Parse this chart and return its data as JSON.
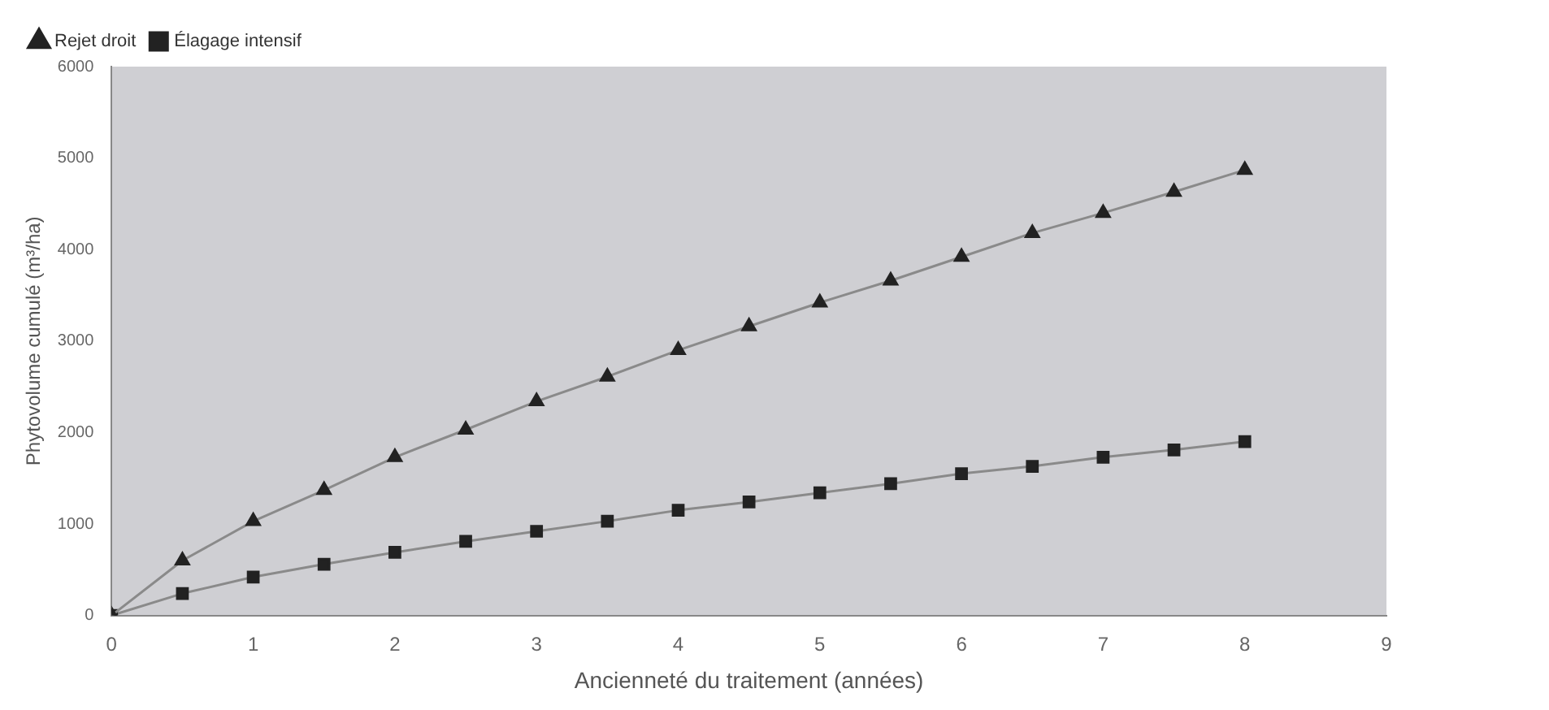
{
  "chart_data": {
    "type": "line",
    "xlabel": "Ancienneté du traitement (années)",
    "ylabel": "Phytovolume cumulé (m³/ha)",
    "x": [
      0,
      0.5,
      1,
      1.5,
      2,
      2.5,
      3,
      3.5,
      4,
      4.5,
      5,
      5.5,
      6,
      6.5,
      7,
      7.5,
      8
    ],
    "series": [
      {
        "name": "Rejet droit",
        "color": "#222222",
        "marker": "triangle",
        "values": [
          0,
          600,
          1030,
          1370,
          1730,
          2030,
          2340,
          2610,
          2900,
          3160,
          3420,
          3660,
          3920,
          4180,
          4400,
          4630,
          4870
        ]
      },
      {
        "name": "Élagage intensif",
        "color": "#222222",
        "marker": "square",
        "values": [
          0,
          240,
          420,
          560,
          690,
          810,
          920,
          1030,
          1150,
          1240,
          1340,
          1440,
          1550,
          1630,
          1730,
          1810,
          1900
        ]
      }
    ],
    "xlim": [
      0,
      9
    ],
    "xticks": [
      0,
      1,
      2,
      3,
      4,
      5,
      6,
      7,
      8,
      9
    ],
    "ylim": [
      0,
      6000
    ],
    "yticks": [
      0,
      1000,
      2000,
      3000,
      4000,
      5000,
      6000
    ],
    "grid": false,
    "legend": "top left",
    "line_style": "solid"
  }
}
